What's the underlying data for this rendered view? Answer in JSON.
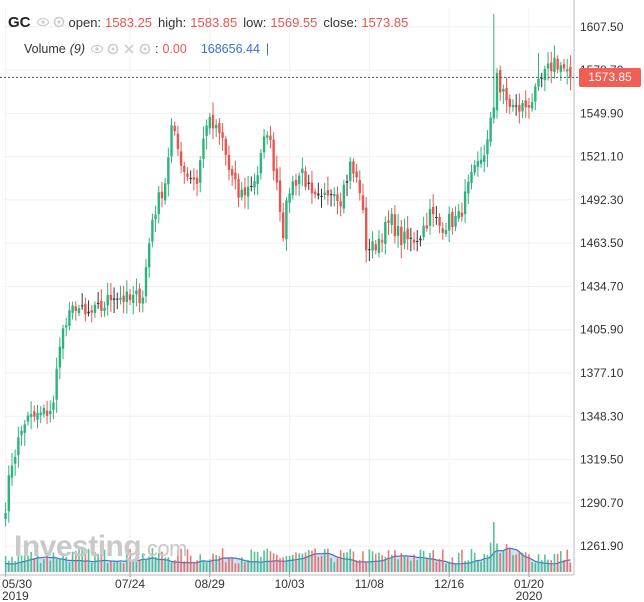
{
  "header": {
    "symbol": "GC",
    "open_label": "open:",
    "open_value": "1583.25",
    "high_label": "high:",
    "high_value": "1583.85",
    "low_label": "low:",
    "low_value": "1569.55",
    "close_label": "close:",
    "close_value": "1573.85"
  },
  "volume_row": {
    "label": "Volume",
    "period": "(9)",
    "value": "0.00",
    "ma_value": "168656.44",
    "cursor": "|"
  },
  "watermark": {
    "brand": "Investing",
    "suffix": ".com"
  },
  "colors": {
    "up": "#2db37d",
    "down": "#e8574f",
    "neutral": "#333333",
    "volume_area": "#c5d8ee",
    "volume_line": "#3b6fd4",
    "price_tag": "#f25d55"
  },
  "chart_data": {
    "type": "candlestick",
    "title": "GC",
    "last_price": "1573.85",
    "y_range": [
      1262,
      1620
    ],
    "y_ticks": [
      "1607.50",
      "1578.70",
      "1549.90",
      "1521.10",
      "1492.30",
      "1463.50",
      "1434.70",
      "1405.90",
      "1377.10",
      "1348.30",
      "1319.50",
      "1290.70",
      "1261.90"
    ],
    "x_ticks": [
      {
        "label": "05/30",
        "sub": "2019"
      },
      {
        "label": "07/24",
        "sub": ""
      },
      {
        "label": "08/29",
        "sub": ""
      },
      {
        "label": "10/03",
        "sub": ""
      },
      {
        "label": "11/08",
        "sub": ""
      },
      {
        "label": "12/16",
        "sub": ""
      },
      {
        "label": "01/20",
        "sub": "2020"
      }
    ],
    "x_tick_index": [
      0,
      39,
      64,
      89,
      114,
      139,
      164
    ],
    "n_bars": 178,
    "close_anchors": [
      [
        0,
        1290
      ],
      [
        2,
        1318
      ],
      [
        6,
        1345
      ],
      [
        12,
        1350
      ],
      [
        15,
        1355
      ],
      [
        17,
        1400
      ],
      [
        22,
        1423
      ],
      [
        25,
        1414
      ],
      [
        30,
        1420
      ],
      [
        34,
        1430
      ],
      [
        39,
        1425
      ],
      [
        43,
        1430
      ],
      [
        46,
        1480
      ],
      [
        50,
        1505
      ],
      [
        52,
        1540
      ],
      [
        56,
        1512
      ],
      [
        60,
        1505
      ],
      [
        63,
        1545
      ],
      [
        66,
        1538
      ],
      [
        68,
        1532
      ],
      [
        70,
        1512
      ],
      [
        73,
        1495
      ],
      [
        76,
        1500
      ],
      [
        79,
        1510
      ],
      [
        82,
        1540
      ],
      [
        85,
        1505
      ],
      [
        87,
        1472
      ],
      [
        89,
        1500
      ],
      [
        93,
        1512
      ],
      [
        96,
        1492
      ],
      [
        99,
        1490
      ],
      [
        102,
        1502
      ],
      [
        105,
        1494
      ],
      [
        108,
        1515
      ],
      [
        111,
        1500
      ],
      [
        113,
        1462
      ],
      [
        115,
        1460
      ],
      [
        118,
        1470
      ],
      [
        121,
        1478
      ],
      [
        124,
        1466
      ],
      [
        127,
        1465
      ],
      [
        130,
        1470
      ],
      [
        133,
        1483
      ],
      [
        136,
        1475
      ],
      [
        139,
        1478
      ],
      [
        142,
        1480
      ],
      [
        145,
        1500
      ],
      [
        148,
        1515
      ],
      [
        151,
        1530
      ],
      [
        153,
        1555
      ],
      [
        154,
        1580
      ],
      [
        155,
        1565
      ],
      [
        157,
        1558
      ],
      [
        160,
        1552
      ],
      [
        163,
        1555
      ],
      [
        166,
        1562
      ],
      [
        168,
        1572
      ],
      [
        170,
        1578
      ],
      [
        172,
        1585
      ],
      [
        174,
        1582
      ],
      [
        176,
        1576
      ],
      [
        177,
        1573.85
      ]
    ]
  }
}
